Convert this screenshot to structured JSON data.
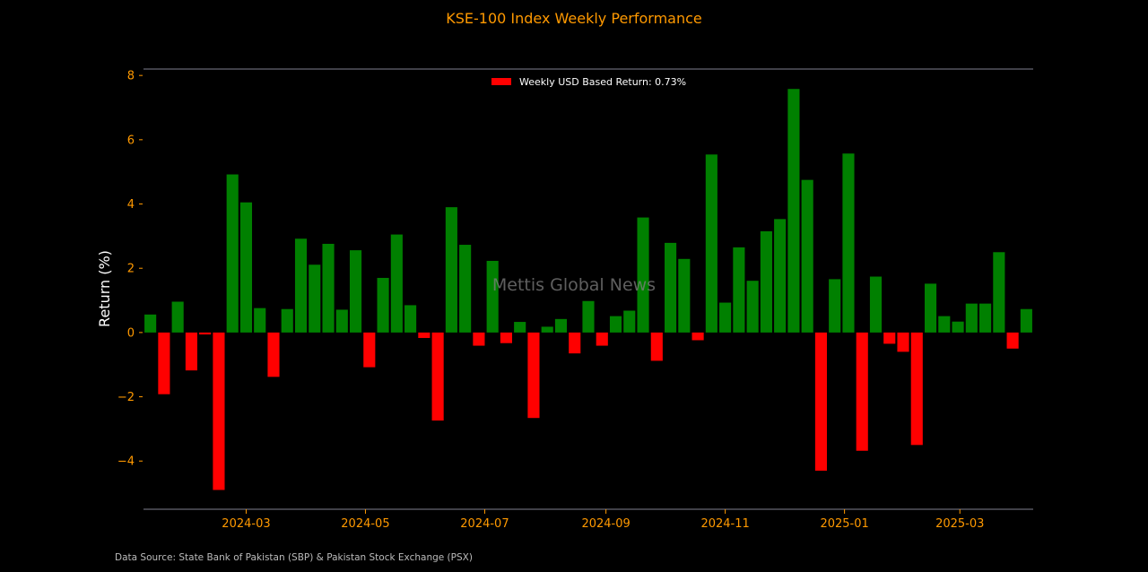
{
  "chart_data": {
    "type": "bar",
    "title": "KSE-100 Index Weekly Performance",
    "xlabel": "",
    "ylabel": "Return (%)",
    "ylim": [
      -5.5,
      8.2
    ],
    "yticks": [
      -4,
      -2,
      0,
      2,
      4,
      6,
      8
    ],
    "yticks_labels": [
      "−4",
      "−2",
      "0",
      "2",
      "4",
      "6",
      "8"
    ],
    "xticks": [
      "2024-03-01",
      "2024-05-01",
      "2024-07-01",
      "2024-09-01",
      "2024-11-01",
      "2025-01-01",
      "2025-03-01"
    ],
    "xticks_labels": [
      "2024-03",
      "2024-05",
      "2024-07",
      "2024-09",
      "2024-11",
      "2025-01",
      "2025-03"
    ],
    "grid": false,
    "legend": {
      "placement": "top-center",
      "label": "Weekly USD Based Return: 0.73%",
      "color": "#ff0000"
    },
    "colors": {
      "positive": "#008000",
      "negative": "#ff0000",
      "title": "#ff9900",
      "ticks": "#ff9900",
      "axis_line": "#808090"
    },
    "watermark": "Mettis Global News",
    "source_note": "Data Source: State Bank of Pakistan (SBP) & Pakistan Stock Exchange (PSX)",
    "series": [
      {
        "name": "Weekly USD Based Return",
        "x": [
          "2024-01-12",
          "2024-01-19",
          "2024-01-26",
          "2024-02-02",
          "2024-02-09",
          "2024-02-16",
          "2024-02-23",
          "2024-03-01",
          "2024-03-08",
          "2024-03-15",
          "2024-03-22",
          "2024-03-29",
          "2024-04-05",
          "2024-04-12",
          "2024-04-19",
          "2024-04-26",
          "2024-05-03",
          "2024-05-10",
          "2024-05-17",
          "2024-05-24",
          "2024-05-31",
          "2024-06-07",
          "2024-06-14",
          "2024-06-21",
          "2024-06-28",
          "2024-07-05",
          "2024-07-12",
          "2024-07-19",
          "2024-07-26",
          "2024-08-02",
          "2024-08-09",
          "2024-08-16",
          "2024-08-23",
          "2024-08-30",
          "2024-09-06",
          "2024-09-13",
          "2024-09-20",
          "2024-09-27",
          "2024-10-04",
          "2024-10-11",
          "2024-10-18",
          "2024-10-25",
          "2024-11-01",
          "2024-11-08",
          "2024-11-15",
          "2024-11-22",
          "2024-11-29",
          "2024-12-06",
          "2024-12-13",
          "2024-12-20",
          "2024-12-27",
          "2025-01-03",
          "2025-01-10",
          "2025-01-17",
          "2025-01-24",
          "2025-01-31",
          "2025-02-07",
          "2025-02-14",
          "2025-02-21",
          "2025-02-28",
          "2025-03-07",
          "2025-03-14",
          "2025-03-21",
          "2025-03-28",
          "2025-04-04"
        ],
        "values": [
          0.56,
          -1.92,
          0.96,
          -1.18,
          -0.06,
          -4.9,
          4.92,
          4.05,
          0.76,
          -1.38,
          0.73,
          2.92,
          2.11,
          2.76,
          0.71,
          2.56,
          -1.08,
          1.7,
          3.05,
          0.85,
          -0.17,
          -2.74,
          3.9,
          2.73,
          -0.41,
          2.23,
          -0.33,
          0.33,
          -2.66,
          0.18,
          0.42,
          -0.65,
          0.98,
          -0.41,
          0.51,
          0.68,
          3.58,
          -0.88,
          2.79,
          2.29,
          -0.24,
          5.54,
          0.93,
          2.65,
          1.61,
          3.15,
          3.53,
          7.58,
          4.75,
          -4.3,
          1.66,
          5.57,
          -3.68,
          1.74,
          -0.35,
          -0.6,
          -3.5,
          1.52,
          0.51,
          0.34,
          0.9,
          0.9,
          2.5,
          -0.5,
          0.73
        ]
      }
    ]
  }
}
